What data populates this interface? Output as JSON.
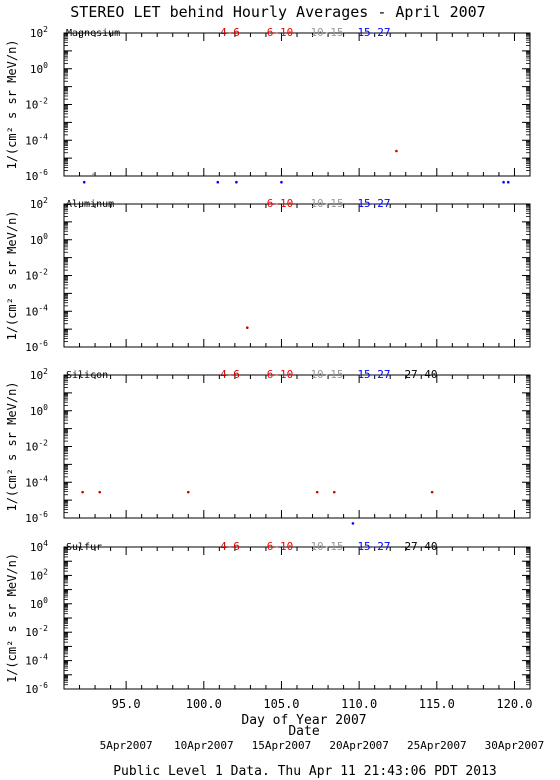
{
  "figure": {
    "title": "STEREO LET behind Hourly Averages - April 2007",
    "x_axis_label": "Day of Year 2007",
    "date_axis_label": "Date",
    "footer": "Public Level 1 Data. Thu Apr 11 21:43:06 PDT 2013",
    "ylabel": "1/(cm² s sr MeV/n)"
  },
  "colors": {
    "4-6": "#cc0000",
    "6-10": "#ff0000",
    "10-15": "#999999",
    "15-27": "#0000ff",
    "27-40": "#000000"
  },
  "chart_data": [
    {
      "type": "scatter",
      "element": "Magnesium",
      "legend": [
        "4-6",
        "6-10",
        "10-15",
        "15-27"
      ],
      "xlim": [
        91.0,
        121.0
      ],
      "ylim_exp": [
        -6,
        2
      ],
      "yscale": "log",
      "series": [
        {
          "name": "4-6",
          "points": [
            [
              112.4,
              2.5e-05
            ]
          ]
        },
        {
          "name": "10-15",
          "points": [
            [
              92.9,
              1.2e-06
            ]
          ]
        },
        {
          "name": "15-27",
          "points": [
            [
              92.3,
              4.5e-07
            ],
            [
              100.9,
              4.5e-07
            ],
            [
              102.1,
              4.5e-07
            ],
            [
              105.0,
              4.5e-07
            ],
            [
              119.3,
              4.5e-07
            ],
            [
              119.6,
              4.5e-07
            ]
          ]
        }
      ]
    },
    {
      "type": "scatter",
      "element": "Aluminum",
      "legend": [
        "6-10",
        "10-15",
        "15-27"
      ],
      "xlim": [
        91.0,
        121.0
      ],
      "ylim_exp": [
        -6,
        2
      ],
      "yscale": "log",
      "series": [
        {
          "name": "4-6",
          "points": [
            [
              102.8,
              1.2e-05
            ]
          ]
        }
      ]
    },
    {
      "type": "scatter",
      "element": "Silicon",
      "legend": [
        "4-6",
        "6-10",
        "10-15",
        "15-27",
        "27-40"
      ],
      "xlim": [
        91.0,
        121.0
      ],
      "ylim_exp": [
        -6,
        2
      ],
      "yscale": "log",
      "series": [
        {
          "name": "4-6",
          "points": [
            [
              92.2,
              2.8e-05
            ],
            [
              93.3,
              2.8e-05
            ],
            [
              99.0,
              2.8e-05
            ],
            [
              107.3,
              2.8e-05
            ],
            [
              108.4,
              2.8e-05
            ],
            [
              114.7,
              2.8e-05
            ]
          ]
        },
        {
          "name": "15-27",
          "points": [
            [
              109.6,
              5e-07
            ]
          ]
        }
      ]
    },
    {
      "type": "scatter",
      "element": "Sulfur",
      "legend": [
        "4-6",
        "6-10",
        "10-15",
        "15-27",
        "27-40"
      ],
      "xlim": [
        91.0,
        121.0
      ],
      "ylim_exp": [
        -6,
        4
      ],
      "yscale": "log",
      "series": []
    }
  ],
  "x_ticks": [
    "95.0",
    "100.0",
    "105.0",
    "110.0",
    "115.0",
    "120.0"
  ],
  "date_ticks": [
    "5Apr2007",
    "10Apr2007",
    "15Apr2007",
    "20Apr2007",
    "25Apr2007",
    "30Apr2007"
  ]
}
